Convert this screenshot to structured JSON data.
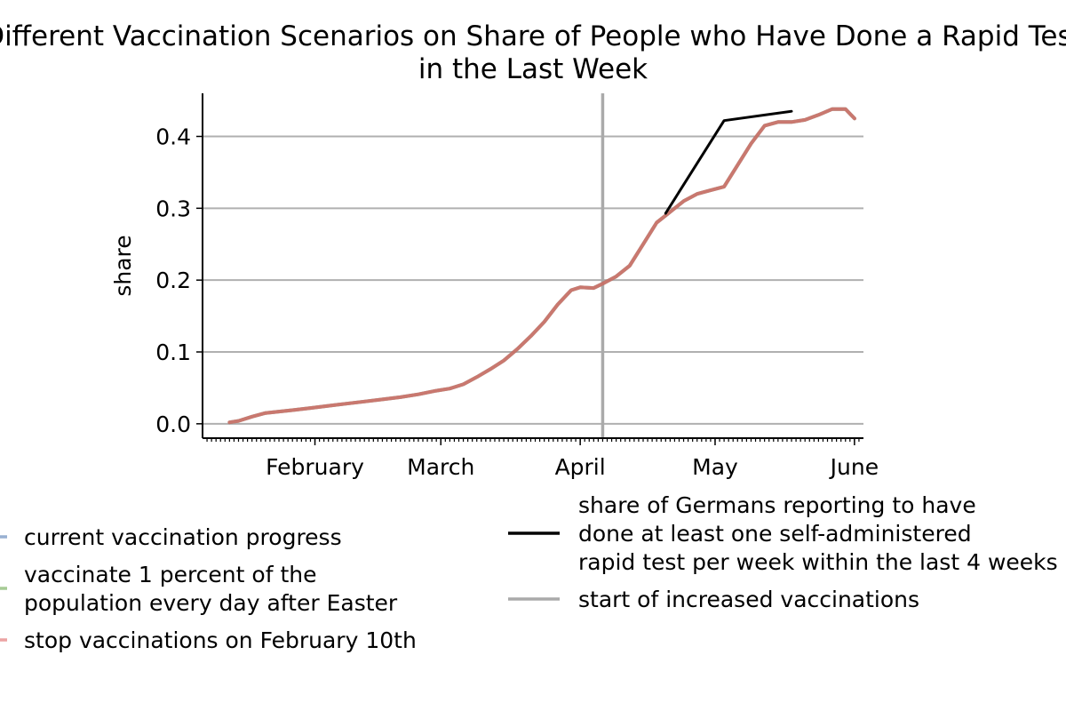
{
  "chart_data": {
    "type": "line",
    "title_lines": [
      "Different Vaccination Scenarios on Share of People who Have Done a Rapid Test",
      "in the Last Week"
    ],
    "xlabel": "",
    "ylabel": "share",
    "ylim": [
      -0.02,
      0.46
    ],
    "xlim": [
      "2021-01-07",
      "2021-06-03"
    ],
    "grid": "horizontal",
    "x_ticks": [
      {
        "date": "2021-02-01",
        "label": "February"
      },
      {
        "date": "2021-03-01",
        "label": "March"
      },
      {
        "date": "2021-04-01",
        "label": "April"
      },
      {
        "date": "2021-05-01",
        "label": "May"
      },
      {
        "date": "2021-06-01",
        "label": "June"
      }
    ],
    "y_ticks": [
      {
        "value": 0.0,
        "label": "0.0"
      },
      {
        "value": 0.1,
        "label": "0.1"
      },
      {
        "value": 0.2,
        "label": "0.2"
      },
      {
        "value": 0.3,
        "label": "0.3"
      },
      {
        "value": 0.4,
        "label": "0.4"
      }
    ],
    "vline": {
      "date": "2021-04-06",
      "name": "start of increased vaccinations",
      "color": "#aaaaaa"
    },
    "series": [
      {
        "name": "current vaccination progress",
        "color": "#547bb4",
        "x": [
          "2021-01-13",
          "2021-01-15",
          "2021-01-18",
          "2021-01-21",
          "2021-01-24",
          "2021-01-27",
          "2021-01-31",
          "2021-02-04",
          "2021-02-08",
          "2021-02-12",
          "2021-02-16",
          "2021-02-20",
          "2021-02-24",
          "2021-02-28",
          "2021-03-03",
          "2021-03-06",
          "2021-03-09",
          "2021-03-12",
          "2021-03-15",
          "2021-03-18",
          "2021-03-21",
          "2021-03-24",
          "2021-03-27",
          "2021-03-30",
          "2021-04-01",
          "2021-04-04",
          "2021-04-06",
          "2021-04-09",
          "2021-04-12",
          "2021-04-15",
          "2021-04-18",
          "2021-04-21",
          "2021-04-24",
          "2021-04-27",
          "2021-04-30",
          "2021-05-03",
          "2021-05-06",
          "2021-05-09",
          "2021-05-12",
          "2021-05-15",
          "2021-05-18",
          "2021-05-21",
          "2021-05-24",
          "2021-05-27",
          "2021-05-30",
          "2021-06-01"
        ],
        "values": [
          0.002,
          0.004,
          0.01,
          0.015,
          0.017,
          0.019,
          0.022,
          0.025,
          0.028,
          0.031,
          0.034,
          0.037,
          0.041,
          0.046,
          0.049,
          0.055,
          0.065,
          0.076,
          0.088,
          0.104,
          0.122,
          0.142,
          0.166,
          0.186,
          0.19,
          0.189,
          0.195,
          0.205,
          0.22,
          0.25,
          0.28,
          0.295,
          0.31,
          0.32,
          0.325,
          0.33,
          0.36,
          0.39,
          0.415,
          0.42,
          0.42,
          0.423,
          0.43,
          0.438,
          0.438,
          0.425
        ]
      },
      {
        "name": "vaccinate 1 percent of the population every day after Easter",
        "color": "#6aa84f",
        "x": [
          "2021-01-13",
          "2021-01-15",
          "2021-01-18",
          "2021-01-21",
          "2021-01-24",
          "2021-01-27",
          "2021-01-31",
          "2021-02-04",
          "2021-02-08",
          "2021-02-12",
          "2021-02-16",
          "2021-02-20",
          "2021-02-24",
          "2021-02-28",
          "2021-03-03",
          "2021-03-06",
          "2021-03-09",
          "2021-03-12",
          "2021-03-15",
          "2021-03-18",
          "2021-03-21",
          "2021-03-24",
          "2021-03-27",
          "2021-03-30",
          "2021-04-01",
          "2021-04-04",
          "2021-04-06",
          "2021-04-09",
          "2021-04-12",
          "2021-04-15",
          "2021-04-18",
          "2021-04-21",
          "2021-04-24",
          "2021-04-27",
          "2021-04-30",
          "2021-05-03",
          "2021-05-06",
          "2021-05-09",
          "2021-05-12",
          "2021-05-15",
          "2021-05-18",
          "2021-05-21",
          "2021-05-24",
          "2021-05-27",
          "2021-05-30",
          "2021-06-01"
        ],
        "values": [
          0.002,
          0.004,
          0.01,
          0.015,
          0.017,
          0.019,
          0.022,
          0.025,
          0.028,
          0.031,
          0.034,
          0.037,
          0.041,
          0.046,
          0.049,
          0.055,
          0.065,
          0.076,
          0.088,
          0.104,
          0.122,
          0.142,
          0.166,
          0.186,
          0.19,
          0.189,
          0.195,
          0.205,
          0.22,
          0.25,
          0.28,
          0.295,
          0.31,
          0.32,
          0.325,
          0.33,
          0.36,
          0.39,
          0.415,
          0.42,
          0.42,
          0.423,
          0.43,
          0.438,
          0.438,
          0.425
        ]
      },
      {
        "name": "stop vaccinations on February 10th",
        "color": "#e06666",
        "x": [
          "2021-01-13",
          "2021-01-15",
          "2021-01-18",
          "2021-01-21",
          "2021-01-24",
          "2021-01-27",
          "2021-01-31",
          "2021-02-04",
          "2021-02-08",
          "2021-02-12",
          "2021-02-16",
          "2021-02-20",
          "2021-02-24",
          "2021-02-28",
          "2021-03-03",
          "2021-03-06",
          "2021-03-09",
          "2021-03-12",
          "2021-03-15",
          "2021-03-18",
          "2021-03-21",
          "2021-03-24",
          "2021-03-27",
          "2021-03-30",
          "2021-04-01",
          "2021-04-04",
          "2021-04-06",
          "2021-04-09",
          "2021-04-12",
          "2021-04-15",
          "2021-04-18",
          "2021-04-21",
          "2021-04-24",
          "2021-04-27",
          "2021-04-30",
          "2021-05-03",
          "2021-05-06",
          "2021-05-09",
          "2021-05-12",
          "2021-05-15",
          "2021-05-18",
          "2021-05-21",
          "2021-05-24",
          "2021-05-27",
          "2021-05-30",
          "2021-06-01"
        ],
        "values": [
          0.002,
          0.004,
          0.01,
          0.015,
          0.017,
          0.019,
          0.022,
          0.025,
          0.028,
          0.031,
          0.034,
          0.037,
          0.041,
          0.046,
          0.049,
          0.055,
          0.065,
          0.076,
          0.088,
          0.104,
          0.122,
          0.142,
          0.166,
          0.186,
          0.19,
          0.189,
          0.195,
          0.205,
          0.22,
          0.25,
          0.28,
          0.295,
          0.31,
          0.32,
          0.325,
          0.33,
          0.36,
          0.39,
          0.415,
          0.42,
          0.42,
          0.423,
          0.43,
          0.438,
          0.438,
          0.425
        ]
      },
      {
        "name": "share of Germans reporting to have done at least one self-administered rapid test per week within the last 4 weeks",
        "color": "#000000",
        "x": [
          "2021-04-20",
          "2021-05-03",
          "2021-05-18"
        ],
        "values": [
          0.293,
          0.422,
          0.435
        ]
      }
    ],
    "legend": {
      "placement": "below",
      "left": [
        {
          "lines": [
            "current vaccination progress"
          ],
          "color": "#547bb4"
        },
        {
          "lines": [
            "vaccinate 1 percent of the",
            "population every day after Easter"
          ],
          "color": "#6aa84f"
        },
        {
          "lines": [
            "stop vaccinations on February 10th"
          ],
          "color": "#e06666"
        }
      ],
      "right": [
        {
          "lines": [
            "share of Germans reporting to have",
            "done at least one self-administered",
            "rapid test per week within the last 4 weeks"
          ],
          "color": "#000000"
        },
        {
          "lines": [
            "start of increased vaccinations"
          ],
          "color": "#aaaaaa"
        }
      ]
    }
  }
}
